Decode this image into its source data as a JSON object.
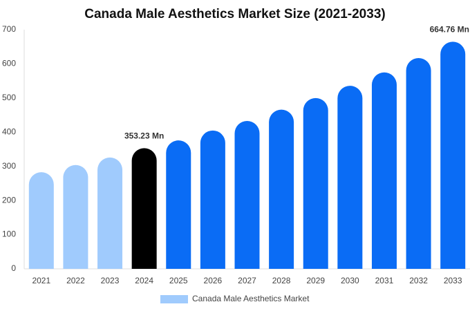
{
  "chart_data": {
    "type": "bar",
    "title": "Canada Male Aesthetics Market Size (2021-2033)",
    "categories": [
      "2021",
      "2022",
      "2023",
      "2024",
      "2025",
      "2026",
      "2027",
      "2028",
      "2029",
      "2030",
      "2031",
      "2032",
      "2033"
    ],
    "values": [
      283,
      304,
      326,
      353.23,
      376,
      405,
      433,
      466,
      500,
      536,
      575,
      617,
      664.76
    ],
    "value_labels": [
      null,
      null,
      null,
      "353.23 Mn",
      null,
      null,
      null,
      null,
      null,
      null,
      null,
      null,
      "664.76 Mn"
    ],
    "colors": [
      "#a0cbfd",
      "#a0cbfd",
      "#a0cbfd",
      "#000000",
      "#0a6cf5",
      "#0a6cf5",
      "#0a6cf5",
      "#0a6cf5",
      "#0a6cf5",
      "#0a6cf5",
      "#0a6cf5",
      "#0a6cf5",
      "#0a6cf5"
    ],
    "legend": {
      "name": "Canada Male Aesthetics Market",
      "color": "#a0cbfd"
    },
    "ylim": [
      0,
      700
    ],
    "yticks": [
      0,
      100,
      200,
      300,
      400,
      500,
      600,
      700
    ],
    "grid": false
  }
}
